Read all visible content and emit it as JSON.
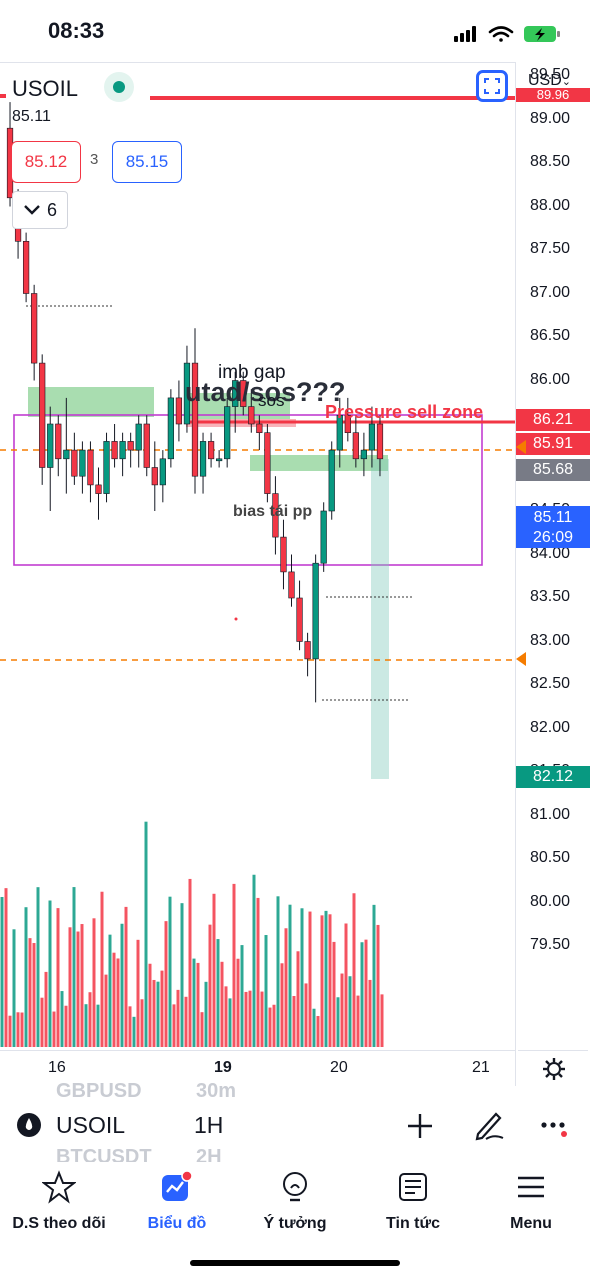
{
  "status_bar": {
    "time": "08:33"
  },
  "header": {
    "symbol": "USOIL",
    "last_price": "85.11",
    "sell_price": "85.12",
    "spread": "3",
    "buy_price": "85.15",
    "collapse_count": "6",
    "currency": "USD",
    "currency_chevron": "chevron-down-icon"
  },
  "price_axis": {
    "ticks": [
      "89.50",
      "89.00",
      "88.50",
      "88.00",
      "87.50",
      "87.00",
      "86.50",
      "86.00",
      "85.50",
      "85.00",
      "84.50",
      "84.00",
      "83.50",
      "83.00",
      "82.50",
      "82.00",
      "81.50",
      "81.00",
      "80.50",
      "80.00",
      "79.50"
    ],
    "labels": {
      "top_cut": "89.96",
      "red": "86.21",
      "orange": "85.91",
      "grey": "85.68",
      "current": "85.11",
      "countdown": "26:09",
      "green": "82.12"
    }
  },
  "time_axis": {
    "labels": [
      "16",
      "19",
      "20",
      "21"
    ]
  },
  "annotations": {
    "imb_gap": "imb gap",
    "utad": "utad/sos???",
    "sos": "sos",
    "pressure": "Pressure sell zone",
    "bias": "bias tái pp"
  },
  "toolbar": {
    "symbol": "USOIL",
    "interval": "1H",
    "ghost_1": "GBPUSD",
    "ghost_1_interval": "30m",
    "ghost_2": "BTCUSDT",
    "ghost_2_interval": "2H"
  },
  "tabs": [
    {
      "label": "D.S theo dõi",
      "icon": "star-icon"
    },
    {
      "label": "Biểu đồ",
      "icon": "chart-icon"
    },
    {
      "label": "Ý tưởng",
      "icon": "lightbulb-icon"
    },
    {
      "label": "Tin tức",
      "icon": "news-icon"
    },
    {
      "label": "Menu",
      "icon": "hamburger-icon"
    }
  ],
  "colors": {
    "up": "#089981",
    "down": "#f23645",
    "accent": "#2962ff",
    "orange": "#f57c00",
    "zone_green": "#84cf8f",
    "purple": "#c13dd1"
  },
  "chart_data": {
    "type": "candlestick",
    "symbol": "USOIL",
    "interval": "1H",
    "price_ticks": [
      89.5,
      89.0,
      88.5,
      88.0,
      87.5,
      87.0,
      86.5,
      86.0,
      85.5,
      85.0,
      84.5,
      84.0,
      83.5,
      83.0,
      82.5,
      82.0,
      81.5,
      81.0,
      80.5,
      80.0,
      79.5
    ],
    "x_labels": [
      "16",
      "19",
      "20",
      "21"
    ],
    "horizontal_levels": [
      86.21,
      85.91,
      85.68,
      83.5,
      82.12
    ],
    "current_price": 85.11,
    "countdown": "26:09"
  }
}
